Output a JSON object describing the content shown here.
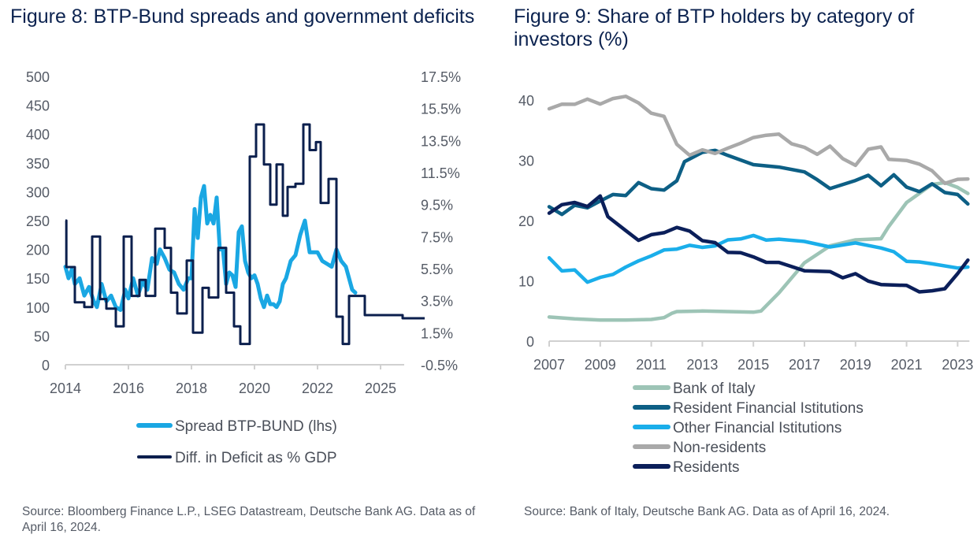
{
  "figure8": {
    "title": "Figure 8: BTP-Bund spreads and government deficits",
    "source": "Source: Bloomberg Finance L.P., LSEG Datastream, Deutsche Bank AG. Data as of April 16, 2024."
  },
  "figure9": {
    "title": "Figure 9: Share of BTP holders by category of investors (%)",
    "source": "Source: Bank of Italy, Deutsche Bank AG. Data as of April 16, 2024."
  },
  "chart_data": [
    {
      "type": "line",
      "title": "Figure 8: BTP-Bund spreads and government deficits",
      "xlabel": "",
      "ylabel_left": "",
      "ylabel_right": "",
      "x_tick_labels": [
        "2014",
        "2016",
        "2018",
        "2020",
        "2022",
        "2025"
      ],
      "y_left_ticks": [
        "0",
        "50",
        "100",
        "150",
        "200",
        "250",
        "300",
        "350",
        "400",
        "450",
        "500"
      ],
      "y_left_range": [
        0,
        500
      ],
      "y_right_ticks": [
        "-0.5%",
        "1.5%",
        "3.5%",
        "5.5%",
        "7.5%",
        "9.5%",
        "11.5%",
        "13.5%",
        "15.5%",
        "17.5%"
      ],
      "y_right_range": [
        -0.5,
        17.5
      ],
      "x_range": [
        2014.0,
        2025.4
      ],
      "grid": false,
      "legend_position": "bottom",
      "series": [
        {
          "name": "Spread BTP-BUND (lhs)",
          "axis": "left",
          "color": "#1aa7e3",
          "x": [
            2014.0,
            2014.1,
            2014.2,
            2014.3,
            2014.45,
            2014.6,
            2014.75,
            2014.9,
            2015.0,
            2015.15,
            2015.3,
            2015.45,
            2015.6,
            2015.75,
            2015.9,
            2016.0,
            2016.15,
            2016.3,
            2016.45,
            2016.6,
            2016.75,
            2016.9,
            2017.0,
            2017.15,
            2017.3,
            2017.45,
            2017.6,
            2017.75,
            2017.9,
            2018.0,
            2018.1,
            2018.2,
            2018.3,
            2018.4,
            2018.5,
            2018.6,
            2018.7,
            2018.8,
            2018.9,
            2019.0,
            2019.1,
            2019.2,
            2019.3,
            2019.4,
            2019.5,
            2019.6,
            2019.7,
            2019.8,
            2019.9,
            2020.0,
            2020.1,
            2020.2,
            2020.3,
            2020.4,
            2020.5,
            2020.6,
            2020.7,
            2020.8,
            2020.9,
            2021.0,
            2021.15,
            2021.3,
            2021.45,
            2021.6,
            2021.75,
            2021.9,
            2022.0,
            2022.15,
            2022.3,
            2022.45,
            2022.6,
            2022.75,
            2022.9,
            2023.0,
            2023.1,
            2023.2
          ],
          "values": [
            170,
            150,
            165,
            140,
            150,
            120,
            135,
            110,
            100,
            140,
            110,
            120,
            100,
            95,
            130,
            115,
            150,
            120,
            145,
            130,
            185,
            175,
            200,
            185,
            165,
            160,
            140,
            130,
            150,
            150,
            270,
            220,
            290,
            310,
            245,
            260,
            245,
            290,
            200,
            200,
            140,
            160,
            155,
            135,
            230,
            240,
            180,
            160,
            150,
            155,
            140,
            115,
            100,
            120,
            105,
            105,
            100,
            110,
            140,
            150,
            180,
            190,
            225,
            250,
            195,
            195,
            195,
            180,
            175,
            170,
            200,
            180,
            170,
            150,
            130,
            125
          ],
          "note": "approximate, read from chart"
        },
        {
          "name": "Diff. in Deficit as % GDP",
          "axis": "right",
          "color": "#0b1f4d",
          "step": true,
          "x": [
            2014.0,
            2014.03,
            2014.3,
            2014.6,
            2014.85,
            2015.1,
            2015.3,
            2015.6,
            2015.85,
            2016.1,
            2016.35,
            2016.55,
            2016.85,
            2017.15,
            2017.35,
            2017.55,
            2017.85,
            2018.05,
            2018.35,
            2018.55,
            2018.85,
            2019.1,
            2019.35,
            2019.55,
            2019.85,
            2020.05,
            2020.3,
            2020.5,
            2020.7,
            2020.9,
            2021.05,
            2021.3,
            2021.55,
            2021.75,
            2021.95,
            2022.1,
            2022.35,
            2022.6,
            2022.8,
            2023.0,
            2023.5,
            2024.3,
            2024.7,
            2025.4
          ],
          "values": [
            8.5,
            5.6,
            3.4,
            3.1,
            7.5,
            3.6,
            3.0,
            1.9,
            7.5,
            3.8,
            4.8,
            3.8,
            8.0,
            6.8,
            4.0,
            2.7,
            6.0,
            1.5,
            4.3,
            3.7,
            6.8,
            4.0,
            1.9,
            0.8,
            12.5,
            14.5,
            12.0,
            9.5,
            12.0,
            8.8,
            10.6,
            10.8,
            14.5,
            12.9,
            13.4,
            9.6,
            11.1,
            2.5,
            0.8,
            3.8,
            2.6,
            2.6,
            2.4,
            2.4
          ],
          "note": "approximate, read from chart"
        }
      ]
    },
    {
      "type": "line",
      "title": "Figure 9: Share of BTP holders by category of investors (%)",
      "xlabel": "",
      "ylabel": "",
      "x_tick_labels": [
        "2007",
        "2009",
        "2011",
        "2013",
        "2015",
        "2017",
        "2019",
        "2021",
        "2023"
      ],
      "y_ticks": [
        "0",
        "10",
        "20",
        "30",
        "40"
      ],
      "y_range": [
        0,
        40
      ],
      "x_range": [
        2007.0,
        2023.4
      ],
      "grid": false,
      "legend_position": "bottom",
      "series": [
        {
          "name": "Bank of Italy",
          "color": "#9dc4b6",
          "x": [
            2007,
            2008,
            2009,
            2010,
            2011,
            2011.5,
            2011.8,
            2012,
            2013,
            2014,
            2015,
            2015.3,
            2016,
            2017,
            2018,
            2019,
            2020,
            2020.3,
            2021,
            2022,
            2022.5,
            2023,
            2023.4
          ],
          "values": [
            4.0,
            3.7,
            3.5,
            3.5,
            3.6,
            3.9,
            4.6,
            4.9,
            5.0,
            4.9,
            4.8,
            5.0,
            8.0,
            13.0,
            15.8,
            16.8,
            17.0,
            19.0,
            23.0,
            26.0,
            26.3,
            25.5,
            24.5
          ]
        },
        {
          "name": "Resident Financial Istitutions",
          "color": "#0d5f85",
          "x": [
            2007,
            2007.5,
            2008,
            2008.5,
            2009,
            2009.5,
            2010,
            2010.5,
            2011,
            2011.5,
            2012,
            2012.3,
            2013,
            2013.5,
            2014,
            2015,
            2016,
            2017,
            2017.5,
            2018,
            2019,
            2019.5,
            2020,
            2020.5,
            2021,
            2021.5,
            2022,
            2022.5,
            2023,
            2023.4
          ],
          "values": [
            22.0,
            21.2,
            22.5,
            22.0,
            23.5,
            24.0,
            24.5,
            26.0,
            25.5,
            25.0,
            26.5,
            30.0,
            31.0,
            32.0,
            30.5,
            29.5,
            28.8,
            28.0,
            27.0,
            25.0,
            27.0,
            27.2,
            26.0,
            27.5,
            25.5,
            25.0,
            25.8,
            25.0,
            24.0,
            23.0
          ]
        },
        {
          "name": "Other Financial Istitutions",
          "color": "#1aaeea",
          "x": [
            2007,
            2007.5,
            2008,
            2008.5,
            2009,
            2009.5,
            2010,
            2010.5,
            2011,
            2011.5,
            2012,
            2012.5,
            2013,
            2013.5,
            2014,
            2014.5,
            2015,
            2015.5,
            2016,
            2017,
            2018,
            2019,
            2020,
            2020.5,
            2021,
            2021.5,
            2022,
            2023,
            2023.4
          ],
          "values": [
            13.5,
            12.0,
            11.5,
            10.0,
            10.5,
            11.0,
            12.5,
            13.0,
            14.5,
            14.8,
            15.5,
            15.8,
            15.5,
            16.0,
            16.5,
            17.3,
            17.2,
            17.0,
            16.8,
            16.5,
            15.8,
            16.0,
            15.8,
            14.5,
            13.5,
            13.0,
            12.8,
            12.3,
            12.0
          ]
        },
        {
          "name": "Non-residents",
          "color": "#a9a9a9",
          "x": [
            2007,
            2007.5,
            2008,
            2008.5,
            2009,
            2009.5,
            2010,
            2010.5,
            2011,
            2011.5,
            2012,
            2012.5,
            2013,
            2013.5,
            2014,
            2014.5,
            2015,
            2015.5,
            2016,
            2016.5,
            2017,
            2017.5,
            2018,
            2018.5,
            2019,
            2019.5,
            2020,
            2020.3,
            2021,
            2021.5,
            2022,
            2022.5,
            2023,
            2023.4
          ],
          "values": [
            38.5,
            39.5,
            39.0,
            40.5,
            39.0,
            40.5,
            40.5,
            39.5,
            38.0,
            37.0,
            33.0,
            30.5,
            32.0,
            31.0,
            32.0,
            33.0,
            33.5,
            34.5,
            34.0,
            33.0,
            32.0,
            31.0,
            32.5,
            30.0,
            29.5,
            31.5,
            32.5,
            30.0,
            30.0,
            29.5,
            28.0,
            26.5,
            26.5,
            27.2
          ]
        },
        {
          "name": "Residents",
          "color": "#0b1f5a",
          "x": [
            2007,
            2007.5,
            2008,
            2008.5,
            2009,
            2009.3,
            2010,
            2010.5,
            2011,
            2011.5,
            2012,
            2012.5,
            2013,
            2013.5,
            2014,
            2014.5,
            2015,
            2015.5,
            2016,
            2017,
            2018,
            2018.5,
            2019,
            2019.5,
            2020,
            2021,
            2021.5,
            2022,
            2022.5,
            2023,
            2023.4
          ],
          "values": [
            21.5,
            22.5,
            23.0,
            22.5,
            23.8,
            21.0,
            18.0,
            17.0,
            17.5,
            18.0,
            19.0,
            18.0,
            17.0,
            16.0,
            15.0,
            14.5,
            14.0,
            13.2,
            12.8,
            12.0,
            11.2,
            10.8,
            11.0,
            10.0,
            9.5,
            9.0,
            8.5,
            8.0,
            9.0,
            11.0,
            13.5
          ]
        }
      ]
    }
  ]
}
